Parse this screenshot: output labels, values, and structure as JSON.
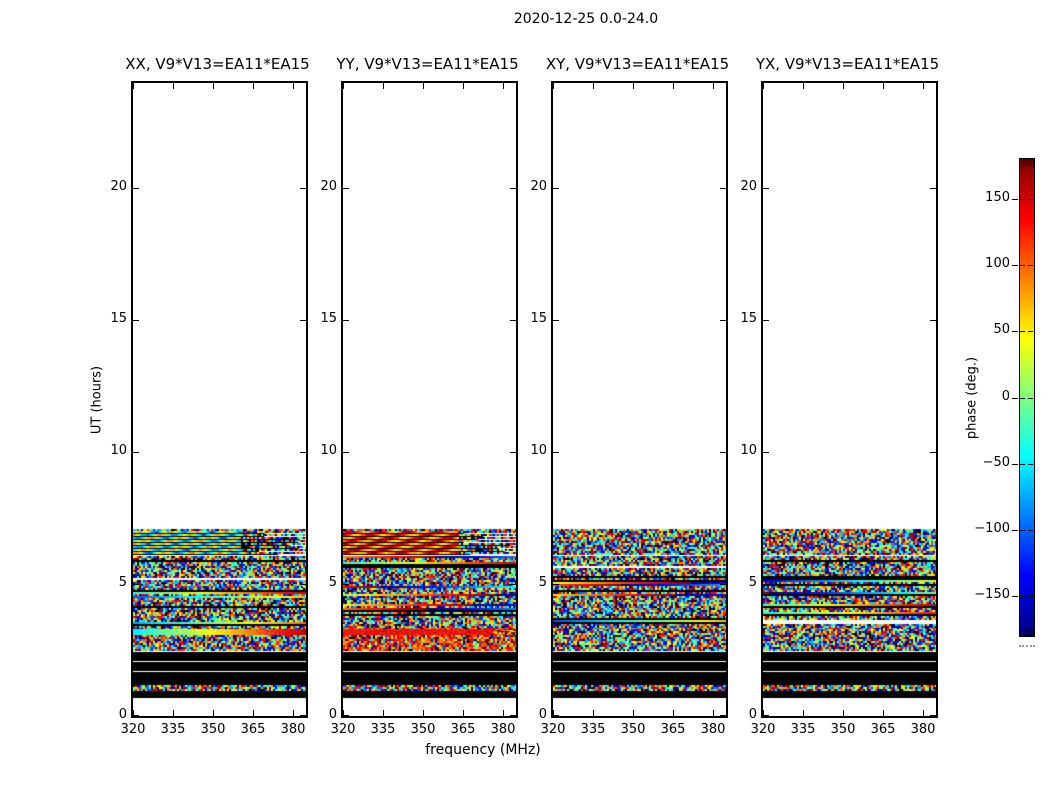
{
  "figure": {
    "title": "2020-12-25 0.0-24.0",
    "xlabel": "frequency (MHz)",
    "ylabel": "UT (hours)",
    "colorbar_label": "phase (deg.)",
    "background": "#ffffff",
    "text_color": "#000000"
  },
  "chart_data": {
    "type": "heatmap",
    "title": "2020-12-25 0.0-24.0",
    "xlabel": "frequency (MHz)",
    "ylabel": "UT (hours)",
    "x_range": [
      320,
      385
    ],
    "x_ticks": [
      320,
      335,
      350,
      365,
      380
    ],
    "y_range": [
      0,
      24
    ],
    "y_ticks": [
      0,
      5,
      10,
      15,
      20
    ],
    "grid": false,
    "colormap": "jet",
    "colorbar": {
      "label": "phase (deg.)",
      "range_deg": [
        -180,
        180
      ],
      "ticks": [
        150,
        100,
        50,
        0,
        -50,
        -100,
        -150
      ],
      "tick_labels": [
        "150",
        "100",
        "50",
        "0",
        "−50",
        "−100",
        "−150"
      ],
      "position": "right",
      "extend_hatched_ends": true
    },
    "panels": [
      {
        "id": "XX",
        "title": "XX, V9*V13=EA11*EA15"
      },
      {
        "id": "YY",
        "title": "YY, V9*V13=EA11*EA15"
      },
      {
        "id": "XY",
        "title": "XY, V9*V13=EA11*EA15"
      },
      {
        "id": "YX",
        "title": "YX, V9*V13=EA11*EA15"
      }
    ],
    "baseline": "V9*V13=EA11*EA15",
    "date": "2020-12-25",
    "ut_span_hours": [
      0.0,
      24.0
    ],
    "data_ut_extent": [
      0.7,
      7.1
    ],
    "bands": [
      {
        "ut": [
          0.7,
          0.98
        ],
        "kind": "black"
      },
      {
        "ut": [
          0.98,
          1.18
        ],
        "kind": "noise"
      },
      {
        "ut": [
          1.18,
          1.66
        ],
        "kind": "black"
      },
      {
        "ut": [
          1.7,
          2.06
        ],
        "kind": "black"
      },
      {
        "ut": [
          2.1,
          2.42
        ],
        "kind": "black"
      },
      {
        "ut": [
          2.52,
          3.0
        ],
        "kind": "noise",
        "style": {
          "YY": "warm"
        }
      },
      {
        "ut": [
          3.0,
          3.38
        ],
        "kind": "smooth",
        "style": {
          "XX": "rainbow",
          "YY": "red",
          "XY": "noise",
          "YX": "noise"
        }
      },
      {
        "ut": [
          3.38,
          6.06
        ],
        "kind": "striped"
      },
      {
        "ut": [
          6.14,
          7.0
        ],
        "kind": "wave",
        "style": {
          "XX": "cool",
          "YY": "warm",
          "XY": "noise",
          "YX": "noise"
        }
      },
      {
        "ut": [
          7.02,
          7.1
        ],
        "kind": "noise"
      }
    ]
  }
}
